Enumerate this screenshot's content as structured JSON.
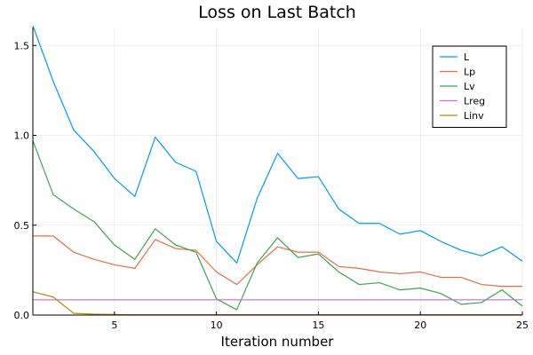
{
  "chart_data": {
    "type": "line",
    "title": "Loss on Last Batch",
    "xlabel": "Iteration number",
    "ylabel": "",
    "xlim": [
      1,
      25
    ],
    "ylim": [
      0,
      1.6
    ],
    "xticks": [
      5,
      10,
      15,
      20,
      25
    ],
    "yticks": [
      0.0,
      0.5,
      1.0,
      1.5
    ],
    "xtick_labels": [
      "5",
      "10",
      "15",
      "20",
      "25"
    ],
    "ytick_labels": [
      "0.0",
      "0.5",
      "1.0",
      "1.5"
    ],
    "grid": true,
    "legend_position": "top-right",
    "x": [
      1,
      2,
      3,
      4,
      5,
      6,
      7,
      8,
      9,
      10,
      11,
      12,
      13,
      14,
      15,
      16,
      17,
      18,
      19,
      20,
      21,
      22,
      23,
      24,
      25
    ],
    "series": [
      {
        "name": "L",
        "color": "#009af9",
        "values": [
          1.61,
          1.3,
          1.03,
          0.91,
          0.76,
          0.66,
          0.99,
          0.85,
          0.8,
          0.41,
          0.29,
          0.65,
          0.9,
          0.76,
          0.77,
          0.59,
          0.51,
          0.51,
          0.45,
          0.47,
          0.41,
          0.36,
          0.33,
          0.38,
          0.3
        ]
      },
      {
        "name": "Lp",
        "color": "#e26f46",
        "values": [
          0.44,
          0.44,
          0.35,
          0.31,
          0.28,
          0.26,
          0.42,
          0.37,
          0.36,
          0.24,
          0.17,
          0.28,
          0.38,
          0.35,
          0.35,
          0.27,
          0.26,
          0.24,
          0.23,
          0.24,
          0.21,
          0.21,
          0.17,
          0.16,
          0.16
        ]
      },
      {
        "name": "Lv",
        "color": "#3da44d",
        "values": [
          0.97,
          0.67,
          0.59,
          0.52,
          0.39,
          0.31,
          0.48,
          0.39,
          0.35,
          0.09,
          0.03,
          0.29,
          0.43,
          0.32,
          0.34,
          0.24,
          0.17,
          0.18,
          0.14,
          0.15,
          0.12,
          0.06,
          0.07,
          0.14,
          0.05
        ]
      },
      {
        "name": "Lreg",
        "color": "#c271d2",
        "values": [
          0.085,
          0.085,
          0.085,
          0.085,
          0.085,
          0.085,
          0.085,
          0.085,
          0.085,
          0.085,
          0.085,
          0.085,
          0.085,
          0.085,
          0.085,
          0.085,
          0.085,
          0.085,
          0.085,
          0.085,
          0.085,
          0.085,
          0.085,
          0.085,
          0.085
        ]
      },
      {
        "name": "Linv",
        "color": "#ac8d18",
        "values": [
          0.13,
          0.1,
          0.01,
          0.005,
          0.003,
          0.002,
          0.002,
          0.002,
          0.002,
          0.002,
          0.002,
          0.002,
          0.002,
          0.002,
          0.002,
          0.002,
          0.002,
          0.002,
          0.002,
          0.002,
          0.002,
          0.002,
          0.002,
          0.002,
          0.002
        ]
      }
    ]
  }
}
